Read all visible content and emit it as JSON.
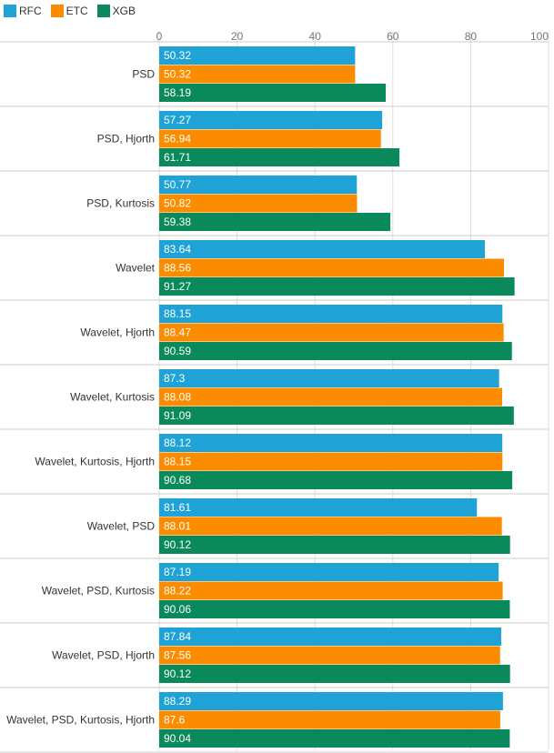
{
  "colors": {
    "RFC": "#1fa2d6",
    "ETC": "#fb8c00",
    "XGB": "#0a8a5a",
    "grid": "#dddddd",
    "separator": "#cccccc",
    "text": "#333333",
    "tick": "#777777"
  },
  "chart_data": {
    "type": "bar",
    "orientation": "horizontal",
    "title": "",
    "xlabel": "",
    "ylabel": "",
    "xlim": [
      0,
      100
    ],
    "x_ticks": [
      0,
      20,
      40,
      60,
      80,
      100
    ],
    "grid": true,
    "legend_position": "top-left",
    "categories": [
      "PSD",
      "PSD, Hjorth",
      "PSD, Kurtosis",
      "Wavelet",
      "Wavelet, Hjorth",
      "Wavelet, Kurtosis",
      "Wavelet, Kurtosis, Hjorth",
      "Wavelet, PSD",
      "Wavelet, PSD, Kurtosis",
      "Wavelet, PSD, Hjorth",
      "Wavelet, PSD, Kurtosis, Hjorth"
    ],
    "series": [
      {
        "name": "RFC",
        "values": [
          50.32,
          57.27,
          50.77,
          83.64,
          88.15,
          87.3,
          88.12,
          81.61,
          87.19,
          87.84,
          88.29
        ]
      },
      {
        "name": "ETC",
        "values": [
          50.32,
          56.94,
          50.82,
          88.56,
          88.47,
          88.08,
          88.15,
          88.01,
          88.22,
          87.56,
          87.6
        ]
      },
      {
        "name": "XGB",
        "values": [
          58.19,
          61.71,
          59.38,
          91.27,
          90.59,
          91.09,
          90.68,
          90.12,
          90.06,
          90.12,
          90.04
        ]
      }
    ],
    "value_labels": [
      [
        "50.32",
        "57.27",
        "50.77",
        "83.64",
        "88.15",
        "87.3",
        "88.12",
        "81.61",
        "87.19",
        "87.84",
        "88.29"
      ],
      [
        "50.32",
        "56.94",
        "50.82",
        "88.56",
        "88.47",
        "88.08",
        "88.15",
        "88.01",
        "88.22",
        "87.56",
        "87.6"
      ],
      [
        "58.19",
        "61.71",
        "59.38",
        "91.27",
        "90.59",
        "91.09",
        "90.68",
        "90.12",
        "90.06",
        "90.12",
        "90.04"
      ]
    ]
  }
}
